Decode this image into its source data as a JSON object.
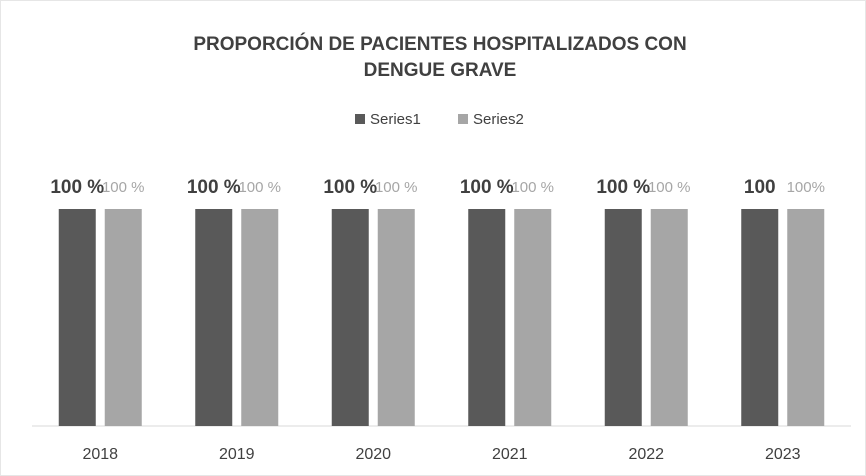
{
  "chart_data": {
    "type": "bar",
    "title": [
      "PROPORCIÓN DE PACIENTES HOSPITALIZADOS CON",
      "DENGUE GRAVE"
    ],
    "categories": [
      "2018",
      "2019",
      "2020",
      "2021",
      "2022",
      "2023"
    ],
    "series": [
      {
        "name": "Series1",
        "color": "#595959",
        "values": [
          100,
          100,
          100,
          100,
          100,
          100
        ],
        "value_labels": [
          "100 %",
          "100 %",
          "100 %",
          "100 %",
          "100 %",
          "100"
        ]
      },
      {
        "name": "Series2",
        "color": "#a6a6a6",
        "values": [
          100,
          100,
          100,
          100,
          100,
          100
        ],
        "value_labels": [
          "100 %",
          "100 %",
          "100 %",
          "100 %",
          "100 %",
          "100%"
        ]
      }
    ],
    "ylim": [
      0,
      100
    ],
    "legend": "top"
  }
}
